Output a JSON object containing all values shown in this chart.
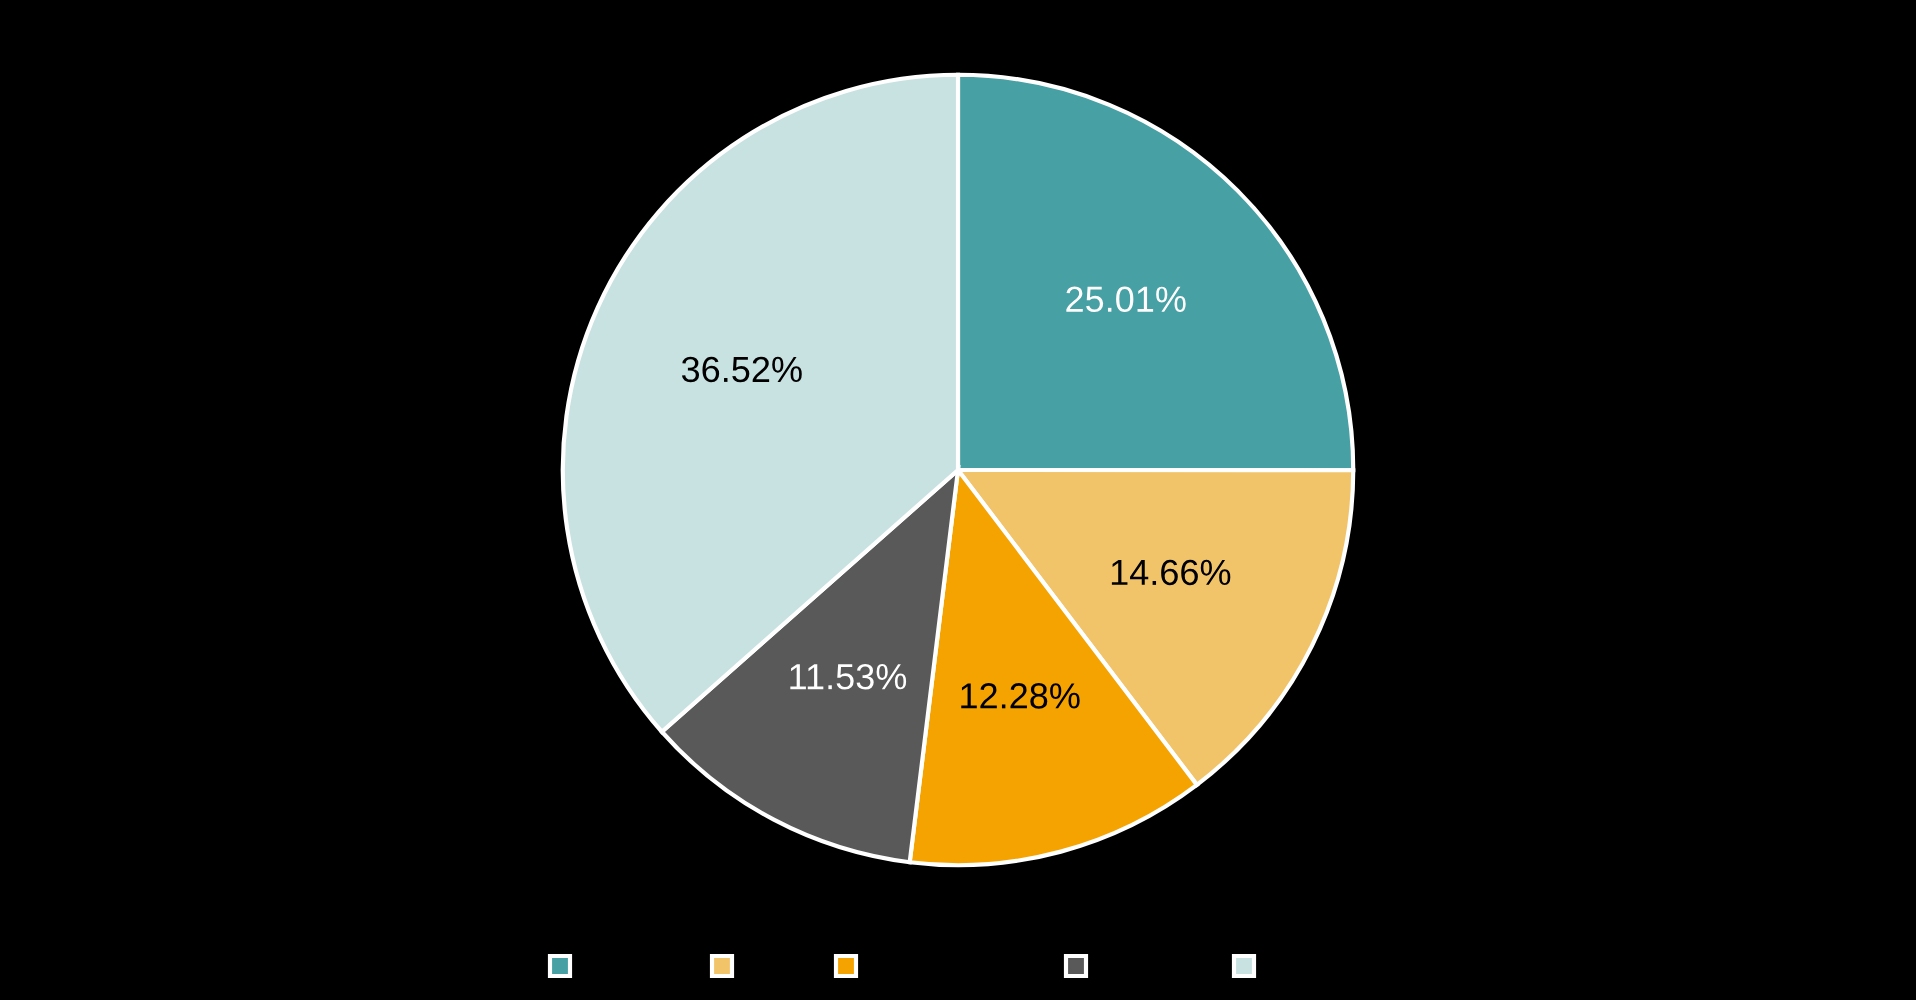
{
  "chart_data": {
    "type": "pie",
    "categories": [
      null,
      null,
      null,
      null,
      null
    ],
    "values": [
      25.01,
      14.66,
      12.28,
      11.53,
      36.52
    ],
    "colors": [
      "#46a0a4",
      "#f2c46a",
      "#f5a300",
      "#595959",
      "#c8e2e1"
    ],
    "value_labels": [
      "25.01%",
      "14.66%",
      "12.28%",
      "11.53%",
      "36.52%"
    ]
  }
}
